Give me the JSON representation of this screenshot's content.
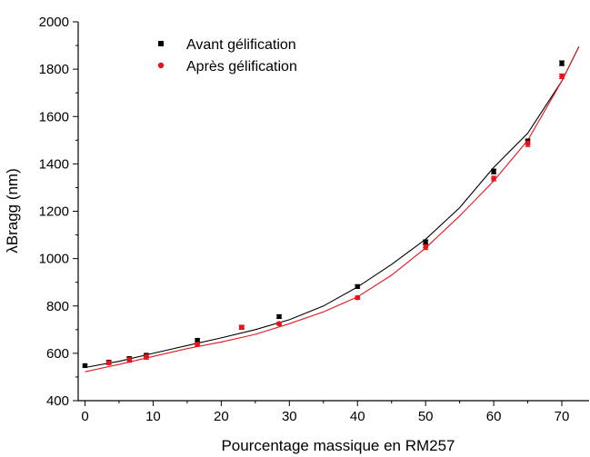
{
  "chart_data": {
    "type": "scatter",
    "xlabel": "Pourcentage massique en RM257",
    "ylabel": "λBragg (nm)",
    "xlim": [
      -1,
      74
    ],
    "ylim": [
      400,
      2000
    ],
    "x_ticks": [
      0,
      10,
      20,
      30,
      40,
      50,
      60,
      70
    ],
    "y_ticks": [
      400,
      600,
      800,
      1000,
      1200,
      1400,
      1600,
      1800,
      2000
    ],
    "legend_position": "top-left",
    "grid": false,
    "series": [
      {
        "name": "Avant gélification",
        "marker": "square",
        "color": "#000000",
        "points": [
          {
            "x": 0,
            "y": 548,
            "err": 5
          },
          {
            "x": 3.5,
            "y": 563,
            "err": 5
          },
          {
            "x": 6.5,
            "y": 578,
            "err": 6
          },
          {
            "x": 9,
            "y": 592,
            "err": 6
          },
          {
            "x": 16.5,
            "y": 655,
            "err": 6
          },
          {
            "x": 23,
            "y": 710,
            "err": 7
          },
          {
            "x": 28.5,
            "y": 755,
            "err": 7
          },
          {
            "x": 40,
            "y": 882,
            "err": 7
          },
          {
            "x": 50,
            "y": 1070,
            "err": 9
          },
          {
            "x": 60,
            "y": 1368,
            "err": 10
          },
          {
            "x": 65,
            "y": 1495,
            "err": 10
          },
          {
            "x": 70,
            "y": 1825,
            "err": 10
          }
        ],
        "fit": [
          [
            0,
            540
          ],
          [
            5,
            566
          ],
          [
            10,
            600
          ],
          [
            15,
            633
          ],
          [
            20,
            665
          ],
          [
            25,
            700
          ],
          [
            30,
            742
          ],
          [
            35,
            800
          ],
          [
            40,
            880
          ],
          [
            45,
            975
          ],
          [
            50,
            1082
          ],
          [
            55,
            1215
          ],
          [
            60,
            1385
          ],
          [
            65,
            1530
          ],
          [
            70,
            1750
          ],
          [
            72.5,
            1895
          ]
        ]
      },
      {
        "name": "Après gélification",
        "marker": "circle",
        "color": "#e8141b",
        "points": [
          {
            "x": 3.5,
            "y": 560,
            "err": 8
          },
          {
            "x": 6.5,
            "y": 572,
            "err": 10
          },
          {
            "x": 9,
            "y": 585,
            "err": 10
          },
          {
            "x": 16.5,
            "y": 638,
            "err": 8
          },
          {
            "x": 23,
            "y": 710,
            "err": 8
          },
          {
            "x": 28.5,
            "y": 725,
            "err": 6
          },
          {
            "x": 40,
            "y": 835,
            "err": 7
          },
          {
            "x": 50,
            "y": 1048,
            "err": 10
          },
          {
            "x": 60,
            "y": 1338,
            "err": 10
          },
          {
            "x": 65,
            "y": 1485,
            "err": 12
          },
          {
            "x": 70,
            "y": 1770,
            "err": 10
          }
        ],
        "fit": [
          [
            0,
            522
          ],
          [
            5,
            553
          ],
          [
            10,
            587
          ],
          [
            15,
            620
          ],
          [
            20,
            648
          ],
          [
            25,
            680
          ],
          [
            30,
            725
          ],
          [
            35,
            775
          ],
          [
            40,
            838
          ],
          [
            45,
            930
          ],
          [
            50,
            1045
          ],
          [
            55,
            1180
          ],
          [
            60,
            1328
          ],
          [
            65,
            1500
          ],
          [
            70,
            1750
          ],
          [
            72.5,
            1895
          ]
        ]
      }
    ]
  }
}
